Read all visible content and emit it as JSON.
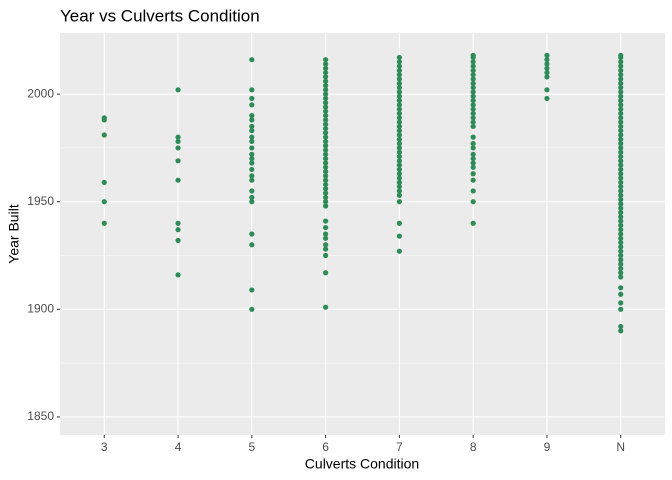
{
  "chart_data": {
    "type": "strip",
    "title": "Year vs Culverts Condition",
    "x_label": "Culverts Condition",
    "y_label": "Year Built",
    "categories": [
      "3",
      "4",
      "5",
      "6",
      "7",
      "8",
      "9",
      "N"
    ],
    "color": "#2E8B57",
    "values": [
      [
        1940,
        1950,
        1959,
        1981,
        1988,
        1989
      ],
      [
        1916,
        1932,
        1937,
        1940,
        1960,
        1969,
        1975,
        1978,
        1980,
        2002
      ],
      [
        1900,
        1909,
        1930,
        1935,
        1950,
        1952,
        1955,
        1960,
        1962,
        1965,
        1968,
        1970,
        1972,
        1975,
        1978,
        1980,
        1983,
        1985,
        1988,
        1990,
        1995,
        1998,
        2002,
        2016
      ],
      [
        1901,
        1917,
        1925,
        1928,
        1930,
        1933,
        1935,
        1938,
        1941,
        1948,
        1950,
        1952,
        1954,
        1956,
        1958,
        1960,
        1962,
        1964,
        1966,
        1968,
        1970,
        1972,
        1974,
        1976,
        1978,
        1980,
        1982,
        1984,
        1986,
        1988,
        1990,
        1992,
        1994,
        1996,
        1998,
        2000,
        2002,
        2004,
        2006,
        2008,
        2010,
        2012,
        2014,
        2016
      ],
      [
        1927,
        1934,
        1940,
        1950,
        1953,
        1955,
        1957,
        1959,
        1961,
        1963,
        1965,
        1967,
        1969,
        1971,
        1973,
        1975,
        1977,
        1979,
        1981,
        1983,
        1985,
        1987,
        1989,
        1991,
        1993,
        1995,
        1997,
        1999,
        2001,
        2003,
        2005,
        2007,
        2009,
        2011,
        2013,
        2015,
        2017
      ],
      [
        1940,
        1950,
        1955,
        1960,
        1963,
        1966,
        1968,
        1970,
        1972,
        1975,
        1977,
        1980,
        1985,
        1987,
        1989,
        1991,
        1993,
        1995,
        1997,
        1999,
        2001,
        2003,
        2005,
        2007,
        2009,
        2011,
        2013,
        2015,
        2017,
        2018
      ],
      [
        1998,
        2002,
        2008,
        2010,
        2012,
        2014,
        2016,
        2018
      ],
      [
        1890,
        1892,
        1900,
        1903,
        1907,
        1910,
        1915,
        1917,
        1919,
        1921,
        1923,
        1925,
        1927,
        1929,
        1931,
        1933,
        1935,
        1937,
        1939,
        1941,
        1943,
        1945,
        1947,
        1949,
        1951,
        1953,
        1955,
        1957,
        1959,
        1961,
        1963,
        1965,
        1967,
        1969,
        1971,
        1973,
        1975,
        1977,
        1979,
        1981,
        1983,
        1985,
        1987,
        1989,
        1991,
        1993,
        1995,
        1997,
        1999,
        2001,
        2003,
        2005,
        2007,
        2009,
        2011,
        2013,
        2015,
        2017,
        2018
      ]
    ],
    "ylim": [
      1841.6,
      2028.4
    ],
    "yticks": [
      1850,
      1900,
      1950,
      2000
    ],
    "grid": true
  }
}
